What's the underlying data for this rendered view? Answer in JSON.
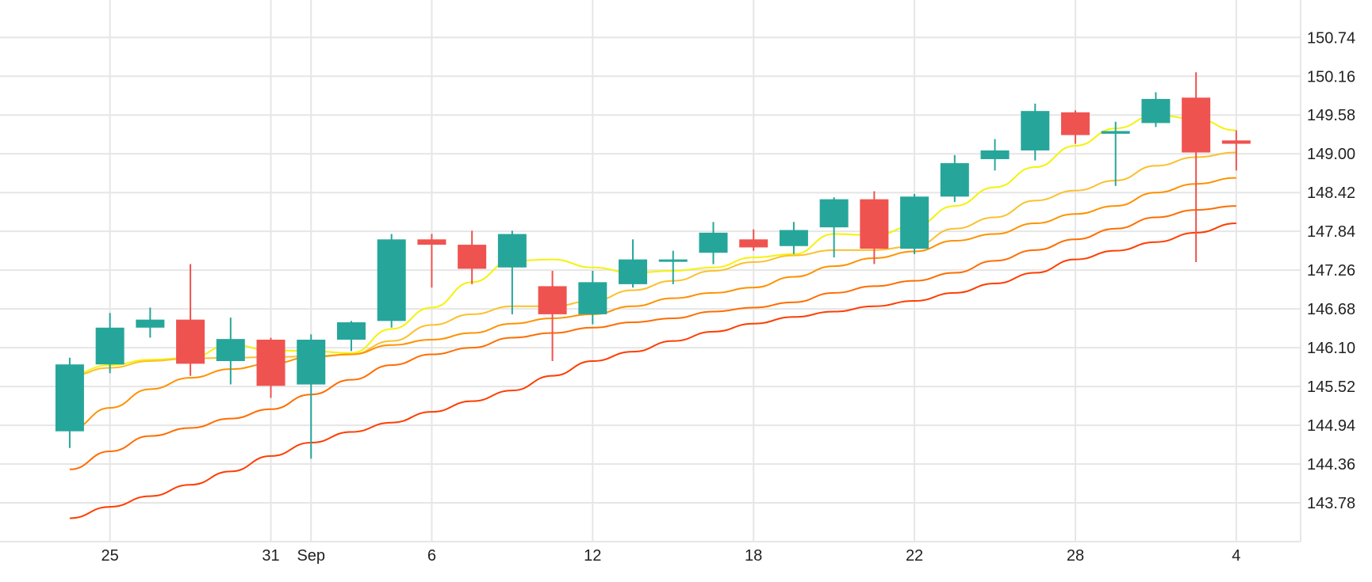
{
  "chart_data": {
    "type": "candlestick",
    "x_tick_labels": [
      "25",
      "31",
      "Sep",
      "6",
      "12",
      "18",
      "22",
      "28",
      "4"
    ],
    "x_tick_day_index": [
      2,
      8,
      9.5,
      14,
      20,
      26,
      32,
      38,
      44
    ],
    "y_ticks": [
      143.78,
      144.36,
      144.94,
      145.52,
      146.1,
      146.68,
      147.26,
      147.84,
      148.42,
      149.0,
      149.58,
      150.16,
      150.74
    ],
    "y_tick_labels": [
      "143.78",
      "144.36",
      "144.94",
      "145.52",
      "146.10",
      "146.68",
      "147.26",
      "147.84",
      "148.42",
      "149.00",
      "149.58",
      "150.16",
      "150.74"
    ],
    "x_range_day_index": [
      -2.1,
      46.4
    ],
    "y_range": [
      143.2,
      151.3
    ],
    "grid": true,
    "colors": {
      "up": "#26a69a",
      "down": "#ef5350",
      "grid": "#e6e6e6",
      "ma": [
        "#f5f20a",
        "#fbc02d",
        "#ff9100",
        "#ff6d00",
        "#ff3d00"
      ]
    },
    "candles": [
      {
        "day": 0.5,
        "open": 144.85,
        "high": 145.95,
        "low": 144.6,
        "close": 145.85
      },
      {
        "day": 2,
        "open": 145.85,
        "high": 146.62,
        "low": 145.72,
        "close": 146.4
      },
      {
        "day": 3.5,
        "open": 146.4,
        "high": 146.7,
        "low": 146.25,
        "close": 146.52
      },
      {
        "day": 5,
        "open": 146.52,
        "high": 147.35,
        "low": 145.68,
        "close": 145.86
      },
      {
        "day": 6.5,
        "open": 145.9,
        "high": 146.55,
        "low": 145.55,
        "close": 146.23
      },
      {
        "day": 8,
        "open": 146.22,
        "high": 146.25,
        "low": 145.35,
        "close": 145.53
      },
      {
        "day": 9.5,
        "open": 145.55,
        "high": 146.3,
        "low": 144.44,
        "close": 146.22
      },
      {
        "day": 11,
        "open": 146.22,
        "high": 146.5,
        "low": 146.05,
        "close": 146.48
      },
      {
        "day": 12.5,
        "open": 146.5,
        "high": 147.8,
        "low": 146.4,
        "close": 147.72
      },
      {
        "day": 14,
        "open": 147.72,
        "high": 147.8,
        "low": 147.0,
        "close": 147.64
      },
      {
        "day": 15.5,
        "open": 147.64,
        "high": 147.85,
        "low": 147.05,
        "close": 147.28
      },
      {
        "day": 17,
        "open": 147.3,
        "high": 147.85,
        "low": 146.6,
        "close": 147.8
      },
      {
        "day": 18.5,
        "open": 147.02,
        "high": 147.25,
        "low": 145.9,
        "close": 146.6
      },
      {
        "day": 20,
        "open": 146.6,
        "high": 147.25,
        "low": 146.45,
        "close": 147.08
      },
      {
        "day": 21.5,
        "open": 147.05,
        "high": 147.72,
        "low": 147.0,
        "close": 147.42
      },
      {
        "day": 23,
        "open": 147.4,
        "high": 147.55,
        "low": 147.05,
        "close": 147.42
      },
      {
        "day": 24.5,
        "open": 147.52,
        "high": 147.98,
        "low": 147.35,
        "close": 147.82
      },
      {
        "day": 26,
        "open": 147.72,
        "high": 147.87,
        "low": 147.55,
        "close": 147.6
      },
      {
        "day": 27.5,
        "open": 147.62,
        "high": 147.98,
        "low": 147.5,
        "close": 147.86
      },
      {
        "day": 29,
        "open": 147.9,
        "high": 148.35,
        "low": 147.45,
        "close": 148.32
      },
      {
        "day": 30.5,
        "open": 148.32,
        "high": 148.44,
        "low": 147.35,
        "close": 147.58
      },
      {
        "day": 32,
        "open": 147.58,
        "high": 148.4,
        "low": 147.5,
        "close": 148.36
      },
      {
        "day": 33.5,
        "open": 148.36,
        "high": 148.98,
        "low": 148.28,
        "close": 148.86
      },
      {
        "day": 35,
        "open": 148.92,
        "high": 149.22,
        "low": 148.75,
        "close": 149.05
      },
      {
        "day": 36.5,
        "open": 149.05,
        "high": 149.75,
        "low": 148.9,
        "close": 149.64
      },
      {
        "day": 38,
        "open": 149.62,
        "high": 149.65,
        "low": 149.15,
        "close": 149.28
      },
      {
        "day": 39.5,
        "open": 149.3,
        "high": 149.48,
        "low": 148.52,
        "close": 149.34
      },
      {
        "day": 41,
        "open": 149.46,
        "high": 149.92,
        "low": 149.4,
        "close": 149.82
      },
      {
        "day": 42.5,
        "open": 149.84,
        "high": 150.22,
        "low": 147.38,
        "close": 149.02
      },
      {
        "day": 44,
        "open": 149.2,
        "high": 149.35,
        "low": 148.75,
        "close": 149.15
      }
    ],
    "series": [
      {
        "x": [
          0.5,
          2,
          3.5,
          5,
          6.5,
          8,
          9.5,
          11,
          12.5,
          14,
          15.5,
          17,
          18.5,
          20,
          21.5,
          23,
          24.5,
          26,
          27.5,
          29,
          30.5,
          32,
          33.5,
          35,
          36.5,
          38,
          39.5,
          41,
          42.5,
          44
        ],
        "values": [
          145.7,
          145.84,
          145.92,
          145.95,
          146.15,
          146.06,
          146.05,
          146.02,
          146.38,
          146.7,
          147.08,
          147.4,
          147.42,
          147.3,
          147.22,
          147.25,
          147.3,
          147.45,
          147.5,
          147.8,
          147.78,
          147.92,
          148.22,
          148.5,
          148.8,
          149.12,
          149.38,
          149.58,
          149.52,
          149.35
        ]
      },
      {
        "x": [
          0.5,
          2,
          3.5,
          5,
          6.5,
          8,
          9.5,
          11,
          12.5,
          14,
          15.5,
          17,
          18.5,
          20,
          21.5,
          23,
          24.5,
          26,
          27.5,
          29,
          30.5,
          32,
          33.5,
          35,
          36.5,
          38,
          39.5,
          41,
          42.5,
          44
        ],
        "values": [
          145.68,
          145.8,
          145.9,
          145.94,
          145.95,
          145.96,
          145.97,
          146.0,
          146.2,
          146.44,
          146.6,
          146.72,
          146.72,
          146.8,
          146.96,
          147.1,
          147.25,
          147.38,
          147.48,
          147.56,
          147.56,
          147.62,
          147.88,
          148.05,
          148.3,
          148.45,
          148.6,
          148.82,
          148.95,
          149.02
        ]
      },
      {
        "x": [
          0.5,
          2,
          3.5,
          5,
          6.5,
          8,
          9.5,
          11,
          12.5,
          14,
          15.5,
          17,
          18.5,
          20,
          21.5,
          23,
          24.5,
          26,
          27.5,
          29,
          30.5,
          32,
          33.5,
          35,
          36.5,
          38,
          39.5,
          41,
          42.5,
          44
        ],
        "values": [
          144.88,
          145.2,
          145.48,
          145.65,
          145.78,
          145.86,
          145.96,
          146.0,
          146.14,
          146.22,
          146.32,
          146.46,
          146.54,
          146.6,
          146.72,
          146.84,
          146.92,
          147.0,
          147.16,
          147.32,
          147.44,
          147.54,
          147.7,
          147.8,
          147.96,
          148.1,
          148.22,
          148.42,
          148.55,
          148.64
        ]
      },
      {
        "x": [
          0.5,
          2,
          3.5,
          5,
          6.5,
          8,
          9.5,
          11,
          12.5,
          14,
          15.5,
          17,
          18.5,
          20,
          21.5,
          23,
          24.5,
          26,
          27.5,
          29,
          30.5,
          32,
          33.5,
          35,
          36.5,
          38,
          39.5,
          41,
          42.5,
          44
        ],
        "values": [
          144.28,
          144.55,
          144.78,
          144.9,
          145.04,
          145.18,
          145.4,
          145.62,
          145.84,
          146.0,
          146.1,
          146.25,
          146.32,
          146.4,
          146.48,
          146.54,
          146.64,
          146.7,
          146.78,
          146.92,
          147.02,
          147.1,
          147.22,
          147.4,
          147.56,
          147.72,
          147.88,
          148.05,
          148.16,
          148.22
        ]
      },
      {
        "x": [
          0.5,
          2,
          3.5,
          5,
          6.5,
          8,
          9.5,
          11,
          12.5,
          14,
          15.5,
          17,
          18.5,
          20,
          21.5,
          23,
          24.5,
          26,
          27.5,
          29,
          30.5,
          32,
          33.5,
          35,
          36.5,
          38,
          39.5,
          41,
          42.5,
          44
        ],
        "values": [
          143.55,
          143.72,
          143.88,
          144.05,
          144.25,
          144.48,
          144.68,
          144.84,
          144.98,
          145.14,
          145.3,
          145.46,
          145.68,
          145.9,
          146.04,
          146.2,
          146.34,
          146.46,
          146.56,
          146.64,
          146.72,
          146.8,
          146.92,
          147.06,
          147.22,
          147.42,
          147.55,
          147.68,
          147.82,
          147.96
        ]
      }
    ]
  }
}
